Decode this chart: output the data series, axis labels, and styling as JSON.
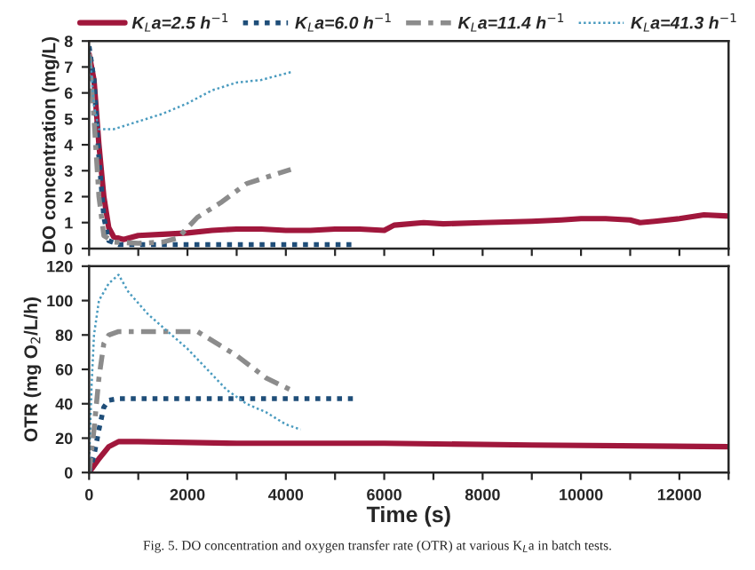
{
  "chart_data": [
    {
      "type": "line",
      "ylabel": "DO concentration (mg/L)",
      "xlim": [
        0,
        13000
      ],
      "ylim": [
        0,
        8
      ],
      "xticks": [
        0,
        {
          "value": 1000,
          "label": null
        },
        2000,
        {
          "value": 3000,
          "label": null
        },
        4000,
        {
          "value": 5000,
          "label": null
        },
        6000,
        {
          "value": 7000,
          "label": null
        },
        8000,
        {
          "value": 9000,
          "label": null
        },
        10000,
        {
          "value": 11000,
          "label": null
        },
        12000,
        {
          "value": 13000,
          "label": null
        }
      ],
      "yticks": [
        0,
        1,
        2,
        3,
        4,
        5,
        6,
        7,
        8
      ],
      "tick_labels": "y",
      "grid": false,
      "legend": "top",
      "marker": "none",
      "series": [
        {
          "name": "K$_{L}$a=2.5 h$^{−1}$",
          "color": "#a0173c",
          "line_style": "solid",
          "x": [
            0,
            100,
            200,
            300,
            400,
            500,
            700,
            1000,
            1500,
            2000,
            2500,
            3000,
            3500,
            4000,
            4500,
            5000,
            5500,
            6000,
            6200,
            6800,
            7200,
            8000,
            9000,
            9600,
            10000,
            10500,
            11000,
            11200,
            11500,
            12000,
            12500,
            13000
          ],
          "values": [
            7.5,
            6.5,
            4,
            2,
            0.8,
            0.45,
            0.35,
            0.5,
            0.55,
            0.6,
            0.7,
            0.75,
            0.75,
            0.7,
            0.7,
            0.75,
            0.75,
            0.7,
            0.9,
            1.0,
            0.95,
            1.0,
            1.05,
            1.1,
            1.15,
            1.15,
            1.1,
            1.0,
            1.05,
            1.15,
            1.3,
            1.25
          ]
        },
        {
          "name": "K$_{L}$a=6.0 h$^{−1}$",
          "color": "#1f4e79",
          "line_style": "dotted",
          "x": [
            0,
            100,
            200,
            300,
            400,
            600,
            1000,
            5400
          ],
          "values": [
            7.8,
            6.5,
            3.5,
            1.2,
            0.3,
            0.15,
            0.15,
            0.15
          ]
        },
        {
          "name": "K$_{L}$a=11.4 h$^{−1}$",
          "color": "#8c8c8c",
          "line_style": "dashed",
          "x": [
            0,
            100,
            200,
            300,
            500,
            1000,
            1500,
            1800,
            2200,
            2700,
            3200,
            4100
          ],
          "values": [
            7.5,
            5,
            2,
            0.5,
            0.25,
            0.2,
            0.25,
            0.4,
            1.2,
            1.8,
            2.5,
            3.05
          ]
        },
        {
          "name": "K$_{L}$a=41.3 h$^{−1}$",
          "color": "#4a9bbf",
          "line_style": "dotted",
          "x": [
            0,
            100,
            200,
            500,
            1000,
            1500,
            2000,
            2500,
            3000,
            3500,
            4100
          ],
          "values": [
            7.8,
            5.5,
            4.6,
            4.6,
            4.9,
            5.2,
            5.6,
            6.1,
            6.4,
            6.5,
            6.8
          ]
        }
      ]
    },
    {
      "type": "line",
      "xlabel": "Time (s)",
      "ylabel": "OTR (mg O$_{2}$/L/h)",
      "xlim": [
        0,
        13000
      ],
      "ylim": [
        0,
        120
      ],
      "xticks": [
        0,
        {
          "value": 1000,
          "label": null
        },
        2000,
        {
          "value": 3000,
          "label": null
        },
        4000,
        {
          "value": 5000,
          "label": null
        },
        6000,
        {
          "value": 7000,
          "label": null
        },
        8000,
        {
          "value": 9000,
          "label": null
        },
        10000,
        {
          "value": 11000,
          "label": null
        },
        12000,
        {
          "value": 13000,
          "label": null
        }
      ],
      "yticks": [
        0,
        20,
        40,
        60,
        80,
        100,
        120
      ],
      "grid": false,
      "legend": false,
      "marker": "none",
      "annotations": [
        "Fig. 5. DO concentration and oxygen transfer rate (OTR) at various K$_{L}$a in batch tests."
      ],
      "series": [
        {
          "color": "#a0173c",
          "line_style": "solid",
          "x": [
            0,
            200,
            400,
            600,
            1000,
            3000,
            6000,
            9000,
            13000
          ],
          "values": [
            0,
            8,
            15,
            18,
            18,
            17,
            17,
            16,
            15
          ]
        },
        {
          "color": "#1f4e79",
          "line_style": "dotted",
          "x": [
            0,
            100,
            200,
            300,
            400,
            600,
            5400
          ],
          "values": [
            0,
            10,
            25,
            38,
            42,
            43,
            43
          ]
        },
        {
          "color": "#8c8c8c",
          "line_style": "dashed",
          "x": [
            0,
            100,
            200,
            300,
            400,
            600,
            2200,
            3000,
            3600,
            4100
          ],
          "values": [
            0,
            25,
            55,
            75,
            80,
            82,
            82,
            68,
            55,
            48
          ]
        },
        {
          "color": "#4a9bbf",
          "line_style": "dotted",
          "x": [
            0,
            50,
            100,
            200,
            400,
            600,
            800,
            1200,
            1600,
            2000,
            2400,
            2800,
            3200,
            3600,
            4000,
            4300
          ],
          "values": [
            5,
            50,
            80,
            100,
            110,
            115,
            105,
            92,
            82,
            72,
            60,
            48,
            40,
            35,
            28,
            25
          ]
        }
      ]
    }
  ]
}
